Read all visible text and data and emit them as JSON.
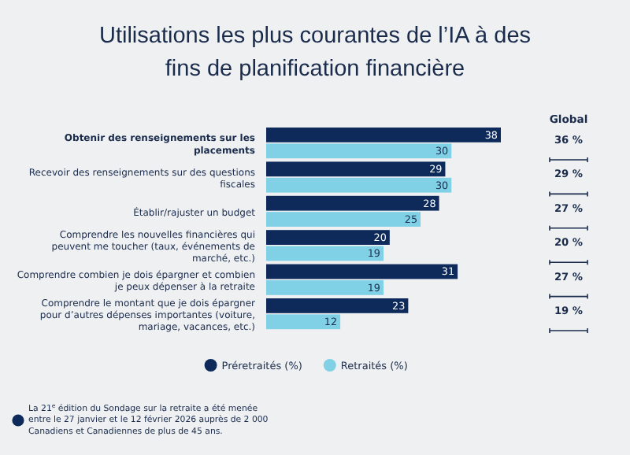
{
  "chart_data": {
    "type": "bar",
    "orientation": "horizontal",
    "title": "Utilisations les plus courantes de l’IA à des fins de planification financière",
    "categories": [
      "Obtenir des renseignements sur les placements",
      "Recevoir des renseignements sur des questions fiscales",
      "Établir/rajuster un budget",
      "Comprendre les nouvelles financières qui peuvent me toucher (taux, événements de marché, etc.)",
      "Comprendre combien je dois épargner et combien je peux dépenser à la retraite",
      "Comprendre le montant que je dois épargner pour d’autres dépenses importantes (voiture, mariage, vacances, etc.)"
    ],
    "series": [
      {
        "name": "Préretraités (%)",
        "color": "#0d2a5a",
        "values": [
          38,
          29,
          28,
          20,
          31,
          23
        ]
      },
      {
        "name": "Retraités (%)",
        "color": "#80d0e6",
        "values": [
          30,
          30,
          25,
          19,
          19,
          12
        ]
      }
    ],
    "data_labels": true,
    "legend": "bottom",
    "annotations": [
      "Global",
      "36 %",
      "29 %",
      "27 %",
      "20 %",
      "27 %",
      "19 %",
      "La 21$^{e}$ édition du Sondage sur la retraite a été menée entre le 27 janvier et le 12 février 2026 auprès de 2 000 Canadiens et Canadiennes de plus de 45 ans."
    ]
  }
}
